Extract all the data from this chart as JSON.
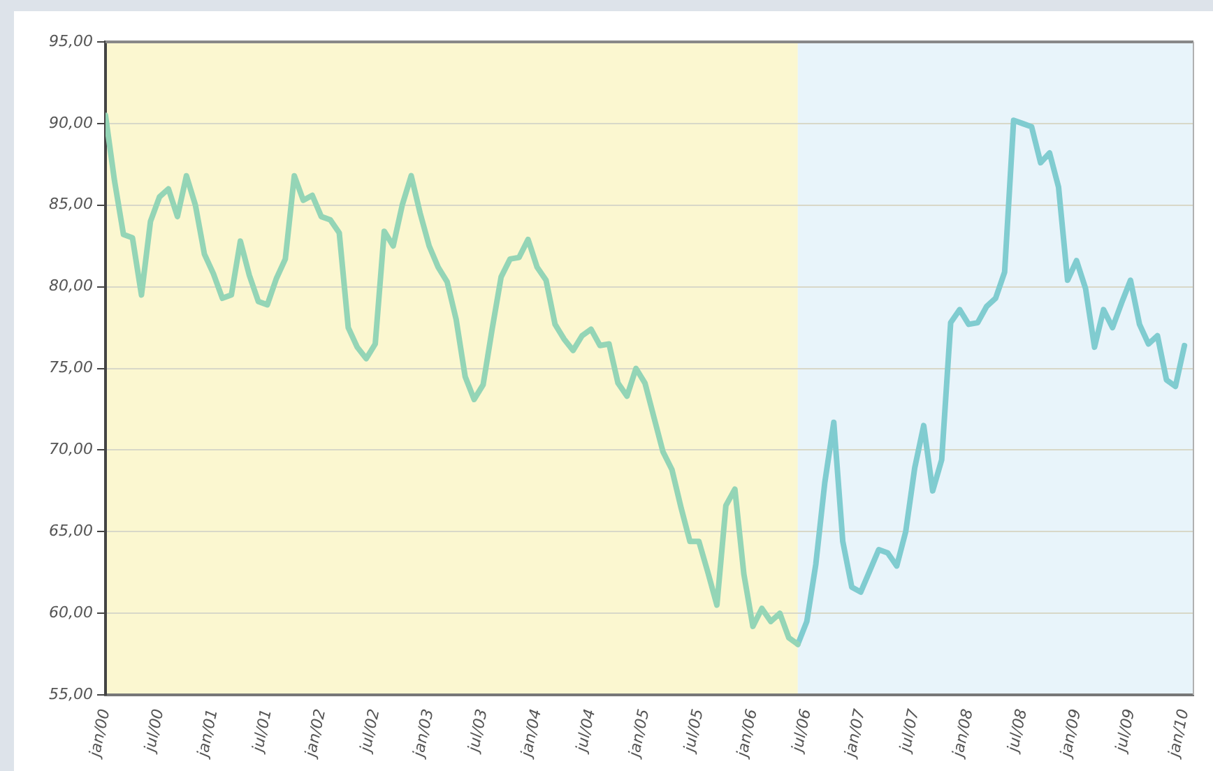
{
  "chart_data": {
    "type": "line",
    "x": [
      "2000-01",
      "2000-02",
      "2000-03",
      "2000-04",
      "2000-05",
      "2000-06",
      "2000-07",
      "2000-08",
      "2000-09",
      "2000-10",
      "2000-11",
      "2000-12",
      "2001-01",
      "2001-02",
      "2001-03",
      "2001-04",
      "2001-05",
      "2001-06",
      "2001-07",
      "2001-08",
      "2001-09",
      "2001-10",
      "2001-11",
      "2001-12",
      "2002-01",
      "2002-02",
      "2002-03",
      "2002-04",
      "2002-05",
      "2002-06",
      "2002-07",
      "2002-08",
      "2002-09",
      "2002-10",
      "2002-11",
      "2002-12",
      "2003-01",
      "2003-02",
      "2003-03",
      "2003-04",
      "2003-05",
      "2003-06",
      "2003-07",
      "2003-08",
      "2003-09",
      "2003-10",
      "2003-11",
      "2003-12",
      "2004-01",
      "2004-02",
      "2004-03",
      "2004-04",
      "2004-05",
      "2004-06",
      "2004-07",
      "2004-08",
      "2004-09",
      "2004-10",
      "2004-11",
      "2004-12",
      "2005-01",
      "2005-02",
      "2005-03",
      "2005-04",
      "2005-05",
      "2005-06",
      "2005-07",
      "2005-08",
      "2005-09",
      "2005-10",
      "2005-11",
      "2005-12",
      "2006-01",
      "2006-02",
      "2006-03",
      "2006-04",
      "2006-05",
      "2006-06",
      "2006-07",
      "2006-08",
      "2006-09",
      "2006-10",
      "2006-11",
      "2006-12",
      "2007-01",
      "2007-02",
      "2007-03",
      "2007-04",
      "2007-05",
      "2007-06",
      "2007-07",
      "2007-08",
      "2007-09",
      "2007-10",
      "2007-11",
      "2007-12",
      "2008-01",
      "2008-02",
      "2008-03",
      "2008-04",
      "2008-05",
      "2008-06",
      "2008-07",
      "2008-08",
      "2008-09",
      "2008-10",
      "2008-11",
      "2008-12",
      "2009-01",
      "2009-02",
      "2009-03",
      "2009-04",
      "2009-05",
      "2009-06",
      "2009-07",
      "2009-08",
      "2009-09",
      "2009-10",
      "2009-11",
      "2009-12",
      "2010-01"
    ],
    "series": [
      {
        "color": "#94d5b6",
        "values": [
          90.5,
          86.5,
          83.2,
          83.0,
          79.5,
          84.0,
          85.5,
          86.0,
          84.3,
          86.8,
          85.0,
          82.0,
          80.8,
          79.3,
          79.5,
          82.8,
          80.7,
          79.1,
          78.9,
          80.5,
          81.7,
          86.8,
          85.3,
          85.6,
          84.3,
          84.1,
          83.3,
          77.5,
          76.3,
          75.6,
          76.5,
          83.4,
          82.5,
          85.0,
          86.8,
          84.5,
          82.5,
          81.2,
          80.3,
          78.0,
          74.5,
          73.1,
          74.0,
          77.4,
          80.6,
          81.7,
          81.8,
          82.9,
          81.2,
          80.4,
          77.7,
          76.8,
          76.1,
          77.0,
          77.4,
          76.4,
          76.5,
          74.1,
          73.3,
          75.0,
          74.1,
          72.0,
          69.9,
          68.8,
          66.5,
          64.4,
          64.4,
          62.5,
          60.5,
          66.6,
          67.6,
          62.4,
          59.2,
          60.3,
          59.5,
          60.0,
          58.5,
          58.1,
          null,
          null,
          null,
          null,
          null,
          null,
          null,
          null,
          null,
          null,
          null,
          null,
          null,
          null,
          null,
          null,
          null,
          null,
          null,
          null,
          null,
          null,
          null,
          null,
          null,
          null,
          null,
          null,
          null,
          null,
          null,
          null,
          null,
          null,
          null,
          null,
          null,
          null,
          null,
          null,
          null,
          null,
          null
        ]
      },
      {
        "color": "#80ccd0",
        "values": [
          null,
          null,
          null,
          null,
          null,
          null,
          null,
          null,
          null,
          null,
          null,
          null,
          null,
          null,
          null,
          null,
          null,
          null,
          null,
          null,
          null,
          null,
          null,
          null,
          null,
          null,
          null,
          null,
          null,
          null,
          null,
          null,
          null,
          null,
          null,
          null,
          null,
          null,
          null,
          null,
          null,
          null,
          null,
          null,
          null,
          null,
          null,
          null,
          null,
          null,
          null,
          null,
          null,
          null,
          null,
          null,
          null,
          null,
          null,
          null,
          null,
          null,
          null,
          null,
          null,
          null,
          null,
          null,
          null,
          null,
          null,
          null,
          null,
          null,
          null,
          null,
          null,
          58.1,
          59.5,
          63.0,
          68.0,
          71.7,
          64.4,
          61.6,
          61.3,
          62.6,
          63.9,
          63.7,
          62.9,
          65.0,
          68.9,
          71.5,
          67.5,
          69.4,
          77.8,
          78.6,
          77.7,
          77.8,
          78.8,
          79.3,
          80.9,
          90.2,
          90.0,
          89.8,
          87.6,
          88.2,
          86.1,
          80.4,
          81.6,
          79.9,
          76.3,
          78.6,
          77.5,
          79.0,
          80.4,
          77.7,
          76.5,
          77.0,
          74.3,
          73.9,
          76.4
        ]
      }
    ],
    "xlim": [
      "2000-01",
      "2010-02"
    ],
    "xticks": [
      {
        "value": "2000-01",
        "label": "jan/00"
      },
      {
        "value": "2000-07",
        "label": "jul/00"
      },
      {
        "value": "2001-01",
        "label": "jan/01"
      },
      {
        "value": "2001-07",
        "label": "jul/01"
      },
      {
        "value": "2002-01",
        "label": "jan/02"
      },
      {
        "value": "2002-07",
        "label": "jul/02"
      },
      {
        "value": "2003-01",
        "label": "jan/03"
      },
      {
        "value": "2003-07",
        "label": "jul/03"
      },
      {
        "value": "2004-01",
        "label": "jan/04"
      },
      {
        "value": "2004-07",
        "label": "jul/04"
      },
      {
        "value": "2005-01",
        "label": "jan/05"
      },
      {
        "value": "2005-07",
        "label": "jul/05"
      },
      {
        "value": "2006-01",
        "label": "jan/06"
      },
      {
        "value": "2006-07",
        "label": "jul/06"
      },
      {
        "value": "2007-01",
        "label": "jan/07"
      },
      {
        "value": "2007-07",
        "label": "jul/07"
      },
      {
        "value": "2008-01",
        "label": "jan/08"
      },
      {
        "value": "2008-07",
        "label": "jul/08"
      },
      {
        "value": "2009-01",
        "label": "jan/09"
      },
      {
        "value": "2009-07",
        "label": "jul/09"
      },
      {
        "value": "2010-01",
        "label": "jan/10"
      }
    ],
    "ylim": [
      55,
      95
    ],
    "yticks": [
      {
        "value": 55,
        "label": "55,00"
      },
      {
        "value": 60,
        "label": "60,00"
      },
      {
        "value": 65,
        "label": "65,00"
      },
      {
        "value": 70,
        "label": "70,00"
      },
      {
        "value": 75,
        "label": "75,00"
      },
      {
        "value": 80,
        "label": "80,00"
      },
      {
        "value": 85,
        "label": "85,00"
      },
      {
        "value": 90,
        "label": "90,00"
      },
      {
        "value": 95,
        "label": "95,00"
      }
    ],
    "bands": [
      {
        "axis": "x",
        "from": "2000-01",
        "to": "2006-06",
        "color": "#fbf7d0"
      },
      {
        "axis": "x",
        "from": "2006-06",
        "to": "2010-02",
        "color": "#e8f4fa"
      }
    ],
    "grid": "y"
  }
}
